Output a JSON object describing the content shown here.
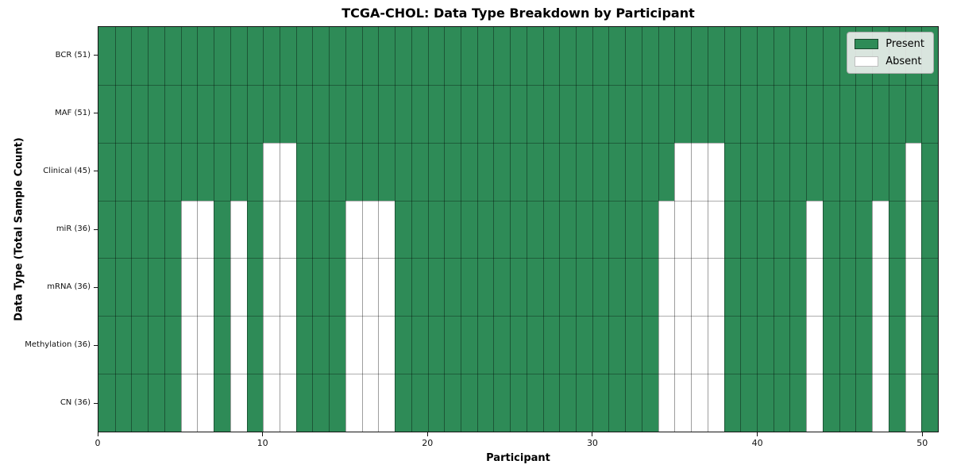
{
  "chart_data": {
    "type": "heatmap",
    "title": "TCGA-CHOL: Data Type Breakdown by Participant",
    "xlabel": "Participant",
    "ylabel": "Data Type (Total Sample Count)",
    "x_ticks": [
      0,
      10,
      20,
      30,
      40,
      50
    ],
    "n_participants": 51,
    "x_range": [
      0,
      51
    ],
    "grid": true,
    "legend_position": "upper right",
    "legend": [
      {
        "label": "Present",
        "value": "present"
      },
      {
        "label": "Absent",
        "value": "absent"
      }
    ],
    "colors": {
      "present": "#2e8b57",
      "absent": "#ffffff",
      "cell_grid": "rgba(0,0,0,0.38)",
      "frame": "#141414"
    },
    "rows": [
      {
        "label": "BCR (51)",
        "present_count": 51,
        "absent_participants": []
      },
      {
        "label": "MAF (51)",
        "present_count": 51,
        "absent_participants": []
      },
      {
        "label": "Clinical (45)",
        "present_count": 45,
        "absent_participants": [
          10,
          11,
          35,
          36,
          37,
          49
        ]
      },
      {
        "label": "miR (36)",
        "present_count": 36,
        "absent_participants": [
          5,
          6,
          8,
          10,
          11,
          15,
          16,
          17,
          34,
          35,
          36,
          37,
          43,
          47,
          49
        ]
      },
      {
        "label": "mRNA (36)",
        "present_count": 36,
        "absent_participants": [
          5,
          6,
          8,
          10,
          11,
          15,
          16,
          17,
          34,
          35,
          36,
          37,
          43,
          47,
          49
        ]
      },
      {
        "label": "Methylation (36)",
        "present_count": 36,
        "absent_participants": [
          5,
          6,
          8,
          10,
          11,
          15,
          16,
          17,
          34,
          35,
          36,
          37,
          43,
          47,
          49
        ]
      },
      {
        "label": "CN (36)",
        "present_count": 36,
        "absent_participants": [
          5,
          6,
          8,
          10,
          11,
          15,
          16,
          17,
          34,
          35,
          36,
          37,
          43,
          47,
          49
        ]
      }
    ]
  }
}
